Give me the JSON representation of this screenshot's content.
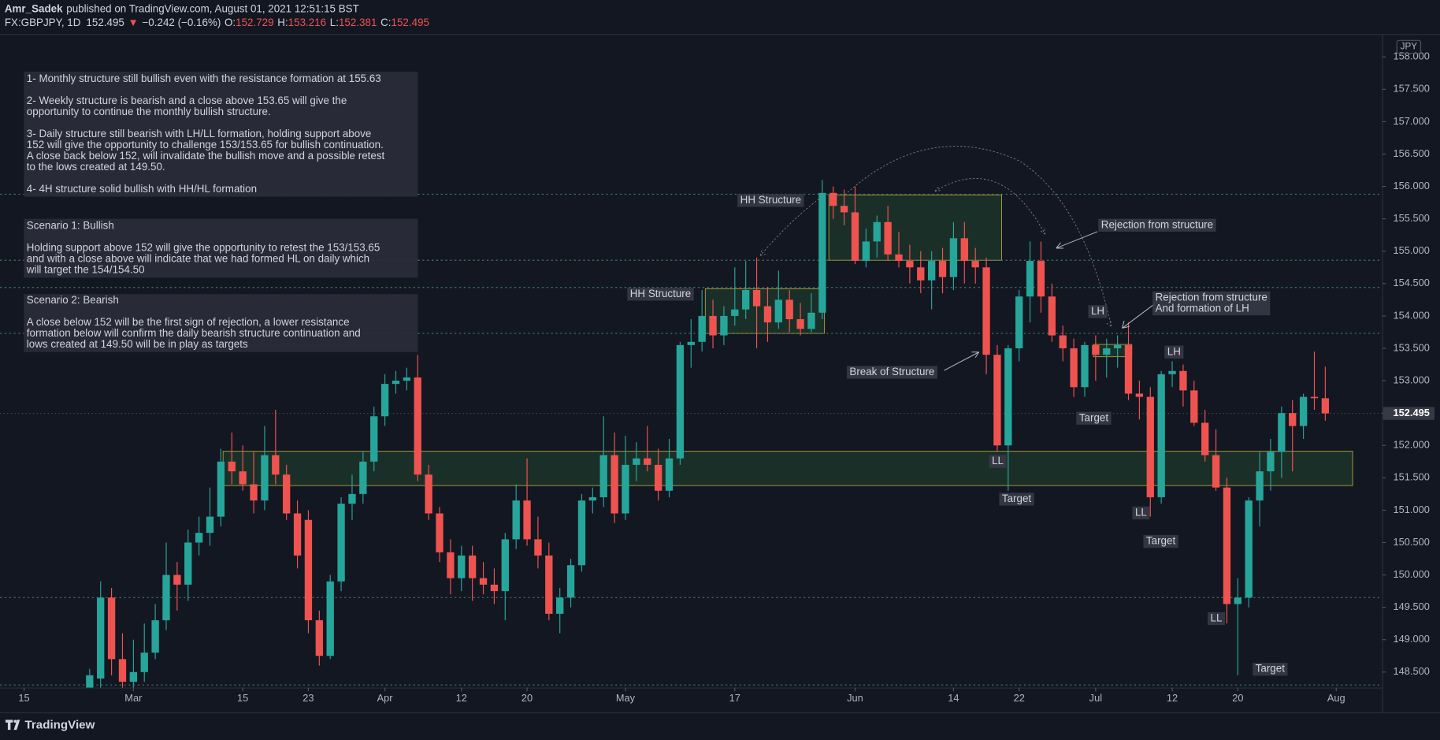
{
  "header": {
    "publisher": "Amr_Sadek",
    "published": "published on TradingView.com, August 01, 2021 12:51:15 BST",
    "symbol": "FX:GBPJPY, 1D",
    "last": "152.495",
    "arrow": "▼",
    "change": "−0.242 (−0.16%)",
    "ohlc": [
      {
        "label": "O:",
        "value": "152.729"
      },
      {
        "label": "H:",
        "value": "153.216"
      },
      {
        "label": "L:",
        "value": "152.381"
      },
      {
        "label": "C:",
        "value": "152.495"
      }
    ]
  },
  "notes": [
    [
      [
        "1- Monthly structure still bullish even with the resistance formation at 155.63"
      ],
      [
        "2- Weekly structure is bearish and a close above 153.65 will give the",
        "opportunity to continue the monthly bullish structure."
      ],
      [
        "3- Daily structure still bearish with LH/LL formation, holding support above",
        "152 will give the opportunity to challenge 153/153.65 for bullish continuation.",
        "A close back below 152, will invalidate the bullish move and a possible retest",
        "to the lows created at 149.50."
      ],
      [
        "4- 4H structure solid bullish with HH/HL formation"
      ]
    ],
    [
      [
        "Scenario 1: Bullish"
      ],
      [
        "Holding support above 152 will give the opportunity to retest the 153/153.65",
        "and with a close above will indicate that we had formed HL on daily which",
        "will target the 154/154.50"
      ]
    ],
    [
      [
        "Scenario 2: Bearish"
      ],
      [
        "A close below 152 will be the first sign of rejection, a lower resistance",
        "formation below will confirm the daily bearish structure continuation and",
        "lows created at 149.50 will be in play as targets"
      ]
    ]
  ],
  "annotations": [
    [
      "HH Structure"
    ],
    [
      "HH Structure"
    ],
    [
      "Rejection from structure"
    ],
    [
      "Rejection from structure",
      "And formation of LH"
    ],
    [
      "LH"
    ],
    [
      "LH"
    ],
    [
      "Break of Structure"
    ],
    [
      "Target"
    ],
    [
      "LL"
    ],
    [
      "Target"
    ],
    [
      "LL"
    ],
    [
      "Target"
    ],
    [
      "LL"
    ],
    [
      "Target"
    ]
  ],
  "logo": "TradingView",
  "chart_data": {
    "type": "candlestick",
    "currency": "JPY",
    "up_color": "#26a69a",
    "down_color": "#ef5350",
    "zone_fill": "rgba(76,175,80,0.16)",
    "zone_border": "#a89f3a",
    "level_color": "#3f7a5a",
    "xlim": [
      -8.2,
      118.2
    ],
    "ylim": [
      148.26,
      158.34
    ],
    "xticks": [
      {
        "value": -6,
        "label": "15"
      },
      {
        "value": 4,
        "label": "Mar"
      },
      {
        "value": 14,
        "label": "15"
      },
      {
        "value": 20,
        "label": "23"
      },
      {
        "value": 27,
        "label": "Apr"
      },
      {
        "value": 34,
        "label": "12"
      },
      {
        "value": 40,
        "label": "20"
      },
      {
        "value": 49,
        "label": "May"
      },
      {
        "value": 59,
        "label": "17"
      },
      {
        "value": 70,
        "label": "Jun"
      },
      {
        "value": 79,
        "label": "14"
      },
      {
        "value": 85,
        "label": "22"
      },
      {
        "value": 92,
        "label": "Jul"
      },
      {
        "value": 99,
        "label": "12"
      },
      {
        "value": 105,
        "label": "20"
      },
      {
        "value": 114,
        "label": "Aug"
      }
    ],
    "yticks": [
      {
        "value": 148.5,
        "label": "148.500"
      },
      {
        "value": 149,
        "label": "149.000"
      },
      {
        "value": 149.5,
        "label": "149.500"
      },
      {
        "value": 150,
        "label": "150.000"
      },
      {
        "value": 150.5,
        "label": "150.500"
      },
      {
        "value": 151,
        "label": "151.000"
      },
      {
        "value": 151.5,
        "label": "151.500"
      },
      {
        "value": 152,
        "label": "152.000"
      },
      {
        "value": 152.5,
        "label": "152.500"
      },
      {
        "value": 153,
        "label": "153.000"
      },
      {
        "value": 153.5,
        "label": "153.500"
      },
      {
        "value": 154,
        "label": "154.000"
      },
      {
        "value": 154.5,
        "label": "154.500"
      },
      {
        "value": 155,
        "label": "155.000"
      },
      {
        "value": 155.5,
        "label": "155.500"
      },
      {
        "value": 156,
        "label": "156.000"
      },
      {
        "value": 156.5,
        "label": "156.500"
      },
      {
        "value": 157,
        "label": "157.000"
      },
      {
        "value": 157.5,
        "label": "157.500"
      },
      {
        "value": 158,
        "label": "158.000"
      }
    ],
    "price_label": {
      "value": 152.495,
      "label": "152.495"
    },
    "levels": [
      155.88,
      154.86,
      154.44,
      153.73,
      149.65,
      148.3
    ],
    "zones": [
      {
        "x": [
          12.2,
          115.5
        ],
        "y": [
          151.38,
          151.91
        ]
      },
      {
        "x": [
          56.3,
          67.2
        ],
        "y": [
          153.73,
          154.42
        ]
      },
      {
        "x": [
          67.6,
          83.4
        ],
        "y": [
          154.86,
          155.87
        ]
      },
      {
        "x": [
          91.8,
          95.3
        ],
        "y": [
          153.37,
          153.56
        ]
      }
    ],
    "open": [
      148.15,
      148.4,
      149.65,
      148.7,
      148.35,
      148.5,
      148.8,
      149.3,
      150.0,
      149.85,
      150.5,
      150.65,
      150.9,
      151.75,
      151.6,
      151.4,
      151.15,
      151.85,
      151.55,
      150.95,
      150.85,
      149.3,
      148.75,
      149.9,
      151.1,
      151.25,
      151.75,
      152.45,
      152.95,
      153.0,
      153.05,
      151.55,
      150.95,
      150.35,
      149.95,
      150.3,
      149.95,
      149.85,
      149.75,
      150.55,
      151.15,
      150.55,
      150.3,
      149.4,
      149.65,
      150.15,
      151.15,
      151.2,
      151.85,
      150.95,
      151.7,
      151.8,
      151.7,
      151.3,
      151.8,
      153.55,
      153.6,
      154.0,
      153.7,
      154.0,
      154.1,
      154.4,
      154.15,
      153.9,
      154.25,
      153.95,
      153.8,
      154.05,
      155.9,
      155.7,
      155.6,
      154.85,
      155.15,
      155.45,
      154.95,
      154.85,
      154.75,
      154.55,
      154.85,
      154.6,
      155.2,
      154.85,
      154.75,
      153.4,
      152.0,
      153.5,
      154.3,
      154.85,
      154.3,
      153.7,
      153.5,
      152.9,
      153.55,
      153.4,
      153.5,
      153.55,
      152.8,
      152.75,
      151.2,
      153.1,
      153.15,
      152.85,
      152.35,
      151.85,
      151.35,
      149.55,
      149.65,
      151.15,
      151.6,
      151.9,
      152.5,
      152.3,
      152.75,
      152.729
    ],
    "high": [
      148.55,
      149.9,
      149.8,
      149.1,
      149.0,
      149.25,
      149.55,
      150.5,
      150.2,
      150.7,
      150.9,
      151.35,
      151.95,
      152.2,
      152.0,
      151.9,
      152.3,
      152.55,
      151.7,
      151.15,
      151.0,
      149.45,
      150.0,
      151.2,
      151.55,
      151.9,
      152.6,
      153.1,
      153.15,
      153.2,
      153.4,
      151.7,
      151.05,
      150.55,
      150.45,
      150.45,
      150.2,
      150.1,
      150.65,
      151.4,
      151.8,
      150.9,
      150.5,
      149.8,
      150.25,
      151.25,
      151.35,
      152.45,
      152.2,
      152.15,
      152.05,
      152.3,
      151.95,
      152.1,
      153.6,
      153.95,
      154.4,
      154.25,
      154.15,
      154.75,
      154.85,
      154.9,
      154.45,
      154.7,
      154.4,
      154.2,
      154.35,
      156.1,
      156.0,
      155.95,
      156.0,
      155.35,
      155.55,
      155.7,
      155.3,
      155.1,
      155.0,
      155.0,
      155.05,
      155.45,
      155.45,
      155.05,
      154.9,
      153.55,
      153.55,
      154.4,
      155.15,
      155.15,
      154.5,
      153.85,
      153.65,
      153.6,
      153.7,
      153.65,
      153.7,
      153.9,
      153.0,
      152.9,
      153.15,
      153.3,
      153.25,
      153.0,
      152.55,
      152.25,
      151.5,
      149.95,
      151.2,
      151.9,
      152.1,
      152.6,
      152.7,
      152.8,
      153.45,
      153.216
    ],
    "low": [
      148.05,
      148.25,
      148.45,
      148.25,
      148.25,
      148.35,
      148.7,
      149.15,
      149.45,
      149.6,
      150.3,
      150.45,
      150.75,
      151.4,
      151.3,
      150.95,
      151.0,
      151.4,
      150.85,
      150.1,
      149.1,
      148.6,
      148.7,
      149.75,
      150.85,
      151.1,
      151.6,
      152.3,
      152.8,
      152.85,
      151.45,
      150.85,
      150.2,
      149.7,
      149.75,
      149.6,
      149.7,
      149.55,
      149.3,
      150.4,
      150.45,
      150.1,
      149.3,
      149.1,
      149.5,
      150.05,
      150.95,
      151.05,
      150.8,
      150.85,
      151.45,
      151.6,
      151.15,
      151.2,
      151.7,
      153.2,
      153.45,
      153.5,
      153.55,
      153.85,
      153.95,
      153.5,
      153.6,
      153.8,
      153.75,
      153.7,
      153.75,
      153.95,
      155.5,
      155.4,
      154.8,
      154.75,
      154.9,
      154.85,
      154.75,
      154.5,
      154.35,
      154.1,
      154.35,
      154.4,
      154.5,
      154.5,
      153.1,
      151.9,
      151.3,
      153.3,
      153.9,
      154.05,
      153.6,
      153.3,
      152.75,
      152.75,
      153.0,
      153.05,
      153.2,
      152.7,
      152.4,
      150.9,
      151.1,
      152.9,
      152.6,
      152.3,
      151.75,
      151.3,
      149.25,
      148.45,
      149.5,
      150.75,
      151.3,
      151.5,
      151.6,
      152.1,
      152.55,
      152.381
    ],
    "close": [
      148.45,
      149.65,
      148.7,
      148.35,
      148.5,
      148.8,
      149.3,
      150.0,
      149.85,
      150.5,
      150.65,
      150.9,
      151.75,
      151.6,
      151.4,
      151.15,
      151.85,
      151.55,
      150.95,
      150.3,
      149.3,
      148.75,
      149.9,
      151.1,
      151.25,
      151.75,
      152.45,
      152.95,
      153.0,
      153.05,
      151.55,
      150.95,
      150.35,
      149.95,
      150.3,
      149.95,
      149.85,
      149.75,
      150.55,
      151.15,
      150.55,
      150.3,
      149.4,
      149.65,
      150.15,
      151.15,
      151.2,
      151.85,
      150.95,
      151.7,
      151.8,
      151.7,
      151.3,
      151.8,
      153.55,
      153.6,
      154.0,
      153.7,
      154.0,
      154.1,
      154.4,
      154.15,
      153.9,
      154.25,
      153.95,
      153.8,
      154.05,
      155.9,
      155.7,
      155.6,
      154.85,
      155.15,
      155.45,
      154.95,
      154.85,
      154.75,
      154.55,
      154.85,
      154.6,
      155.2,
      154.85,
      154.75,
      153.4,
      152.0,
      153.5,
      154.3,
      154.85,
      154.3,
      153.7,
      153.5,
      152.9,
      153.55,
      153.4,
      153.5,
      153.55,
      152.8,
      152.75,
      151.2,
      153.1,
      153.15,
      152.85,
      152.35,
      151.85,
      151.35,
      149.55,
      149.65,
      151.15,
      151.6,
      151.9,
      152.5,
      152.3,
      152.75,
      152.73,
      152.495
    ]
  }
}
